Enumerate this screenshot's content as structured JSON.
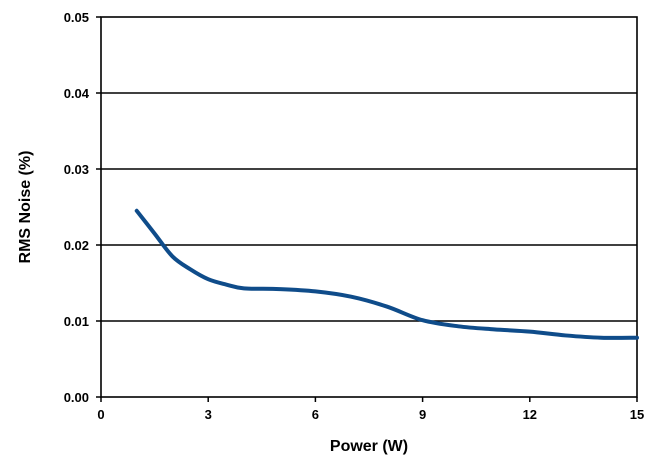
{
  "chart_data": {
    "type": "line",
    "title": "",
    "xlabel": "Power (W)",
    "ylabel": "RMS Noise (%)",
    "xlim": [
      0,
      15
    ],
    "ylim": [
      0,
      0.05
    ],
    "x_ticks": [
      "0",
      "3",
      "6",
      "9",
      "12",
      "15"
    ],
    "y_ticks": [
      "0.00",
      "0.01",
      "0.02",
      "0.03",
      "0.04",
      "0.05"
    ],
    "grid": "horizontal",
    "legend": "none",
    "series": [
      {
        "color": "#0f4c8a",
        "x": [
          1,
          1.5,
          2,
          2.5,
          3,
          3.5,
          4,
          5,
          6,
          7,
          8,
          9,
          10,
          11,
          12,
          13,
          14,
          15
        ],
        "y": [
          0.0245,
          0.0215,
          0.0185,
          0.0168,
          0.0155,
          0.0148,
          0.0143,
          0.0142,
          0.0139,
          0.0132,
          0.0119,
          0.0101,
          0.0093,
          0.0089,
          0.0086,
          0.0081,
          0.0078,
          0.0078
        ]
      }
    ]
  }
}
